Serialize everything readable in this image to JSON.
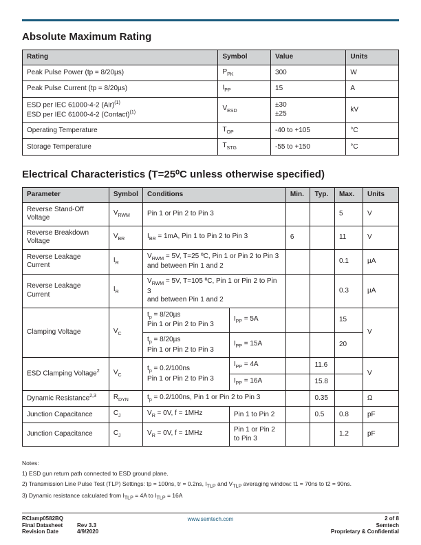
{
  "section1": {
    "title": "Absolute Maximum Rating",
    "headers": [
      "Rating",
      "Symbol",
      "Value",
      "Units"
    ],
    "col_widths": [
      "52%",
      "14%",
      "20%",
      "14%"
    ],
    "rows": [
      {
        "rating": "Peak Pulse Power (tp = 8/20µs)",
        "symbol": "P<sub>PK</sub>",
        "value": "300",
        "units": "W"
      },
      {
        "rating": "Peak Pulse Current (tp = 8/20µs)",
        "symbol": "I<sub>PP</sub>",
        "value": "15",
        "units": "A"
      },
      {
        "rating": "ESD per IEC 61000-4-2 (Air)<sup>(1)</sup><br>ESD per IEC 61000-4-2 (Contact)<sup>(1)</sup>",
        "symbol": "V<sub>ESD</sub>",
        "value": "±30<br>±25",
        "units": "kV"
      },
      {
        "rating": "Operating Temperature",
        "symbol": "T<sub>OP</sub>",
        "value": "-40 to +105",
        "units": "°C"
      },
      {
        "rating": "Storage Temperature",
        "symbol": "T<sub>STG</sub>",
        "value": "-55 to +150",
        "units": "°C"
      }
    ]
  },
  "section2": {
    "title": "Electrical Characteristics (T=25⁰C unless otherwise specified)",
    "headers": [
      "Parameter",
      "Symbol",
      "Conditions",
      "Min.",
      "Typ.",
      "Max.",
      "Units"
    ],
    "col_widths": [
      "23%",
      "9%",
      "38%",
      "6.5%",
      "6.5%",
      "7.5%",
      "9.5%"
    ]
  },
  "notes": {
    "heading": "Notes:",
    "items": [
      "1) ESD gun return path connected to ESD ground plane.",
      "2) Transmission Line Pulse Test (TLP) Settings: tp = 100ns, tr = 0.2ns, I<sub>TLP</sub> and V<sub>TLP</sub> averaging window: t1 = 70ns to t2 = 90ns.",
      "3) Dynamic resistance calculated from I<sub>TLP</sub> = 4A to I<sub>TLP</sub> = 16A"
    ]
  },
  "footer": {
    "left_line1": "RClamp0582BQ",
    "left_line2a": "Final Datasheet",
    "left_line2b": "Rev 3.3",
    "left_line3a": "Revision Date",
    "left_line3b": "4/9/2020",
    "mid": "www.semtech.com",
    "right_line1": "2 of 8",
    "right_line2": "Semtech",
    "right_line3": "Proprietary & Confidential"
  }
}
